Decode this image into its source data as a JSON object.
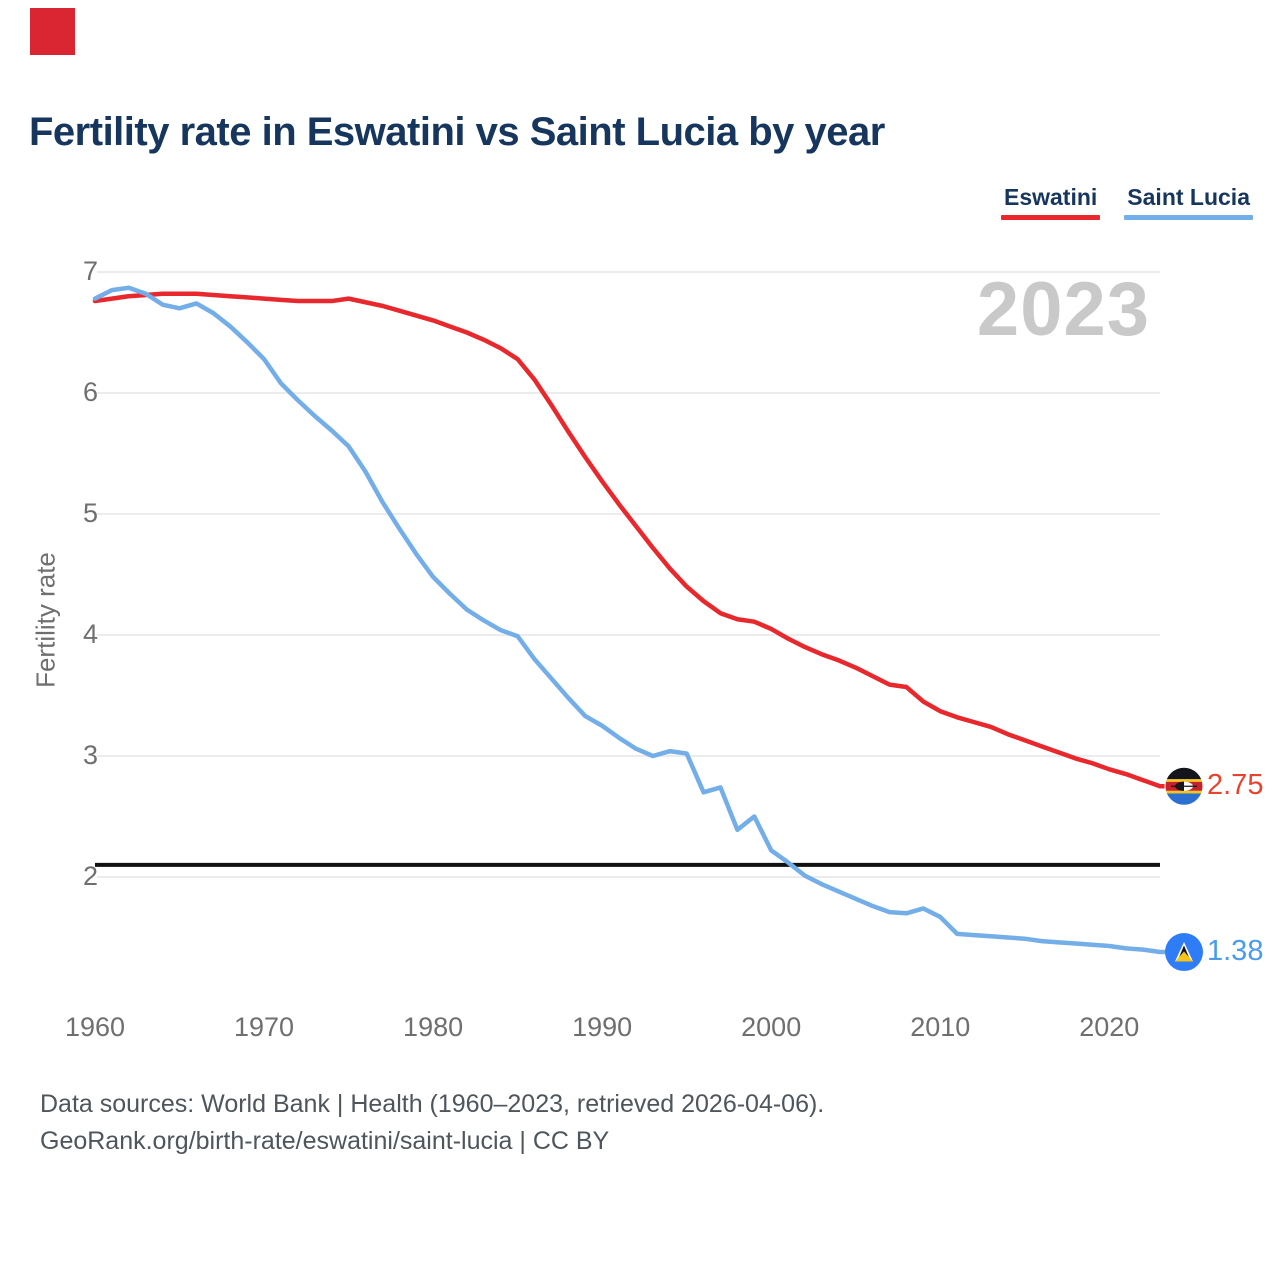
{
  "header": {
    "title": "Fertility rate in Eswatini vs Saint Lucia by year"
  },
  "logo_color": "#d92632",
  "legend": [
    {
      "label": "Eswatini",
      "color": "#e8282d"
    },
    {
      "label": "Saint Lucia",
      "color": "#74aee9"
    }
  ],
  "watermark": "2023",
  "y_axis": {
    "label": "Fertility rate",
    "ticks": [
      7,
      6,
      5,
      4,
      3,
      2
    ]
  },
  "x_axis": {
    "ticks": [
      1960,
      1970,
      1980,
      1990,
      2000,
      2010,
      2020
    ]
  },
  "end_labels": [
    {
      "series": "Eswatini",
      "value": "2.75",
      "color": "#e8432f",
      "flag": "eswatini-flag"
    },
    {
      "series": "Saint Lucia",
      "value": "1.38",
      "color": "#4a9cea",
      "flag": "saint-lucia-flag"
    }
  ],
  "footer": {
    "line1": "Data sources: World Bank | Health (1960–2023, retrieved 2026-04-06).",
    "line2": "GeoRank.org/birth-rate/eswatini/saint-lucia | CC BY"
  },
  "chart_data": {
    "type": "line",
    "title": "Fertility rate in Eswatini vs Saint Lucia by year",
    "xlabel": "",
    "ylabel": "Fertility rate",
    "xlim": [
      1960,
      2023
    ],
    "ylim": [
      1.2,
      7.05
    ],
    "grid": true,
    "legend_position": "top-right",
    "reference_line": {
      "y": 2.1,
      "color": "#111111"
    },
    "x": [
      1960,
      1961,
      1962,
      1963,
      1964,
      1965,
      1966,
      1967,
      1968,
      1969,
      1970,
      1971,
      1972,
      1973,
      1974,
      1975,
      1976,
      1977,
      1978,
      1979,
      1980,
      1981,
      1982,
      1983,
      1984,
      1985,
      1986,
      1987,
      1988,
      1989,
      1990,
      1991,
      1992,
      1993,
      1994,
      1995,
      1996,
      1997,
      1998,
      1999,
      2000,
      2001,
      2002,
      2003,
      2004,
      2005,
      2006,
      2007,
      2008,
      2009,
      2010,
      2011,
      2012,
      2013,
      2014,
      2015,
      2016,
      2017,
      2018,
      2019,
      2020,
      2021,
      2022,
      2023
    ],
    "series": [
      {
        "name": "Eswatini",
        "color": "#e8282d",
        "values": [
          6.76,
          6.78,
          6.8,
          6.81,
          6.82,
          6.82,
          6.82,
          6.81,
          6.8,
          6.79,
          6.78,
          6.77,
          6.76,
          6.76,
          6.76,
          6.78,
          6.75,
          6.72,
          6.68,
          6.64,
          6.6,
          6.55,
          6.5,
          6.44,
          6.37,
          6.28,
          6.11,
          5.9,
          5.68,
          5.47,
          5.27,
          5.08,
          4.9,
          4.72,
          4.55,
          4.4,
          4.28,
          4.18,
          4.13,
          4.11,
          4.05,
          3.97,
          3.9,
          3.84,
          3.79,
          3.73,
          3.66,
          3.59,
          3.57,
          3.45,
          3.37,
          3.32,
          3.28,
          3.24,
          3.18,
          3.13,
          3.08,
          3.03,
          2.98,
          2.94,
          2.89,
          2.85,
          2.8,
          2.75
        ]
      },
      {
        "name": "Saint Lucia",
        "color": "#74aee9",
        "values": [
          6.78,
          6.85,
          6.87,
          6.82,
          6.73,
          6.7,
          6.74,
          6.66,
          6.55,
          6.42,
          6.28,
          6.08,
          5.94,
          5.81,
          5.69,
          5.56,
          5.35,
          5.1,
          4.88,
          4.67,
          4.48,
          4.34,
          4.21,
          4.12,
          4.04,
          3.99,
          3.8,
          3.64,
          3.48,
          3.33,
          3.25,
          3.15,
          3.06,
          3.0,
          3.04,
          3.02,
          2.7,
          2.74,
          2.39,
          2.5,
          2.22,
          2.12,
          2.01,
          1.94,
          1.88,
          1.82,
          1.76,
          1.71,
          1.7,
          1.74,
          1.67,
          1.53,
          1.52,
          1.51,
          1.5,
          1.49,
          1.47,
          1.46,
          1.45,
          1.44,
          1.43,
          1.41,
          1.4,
          1.38
        ]
      }
    ]
  }
}
